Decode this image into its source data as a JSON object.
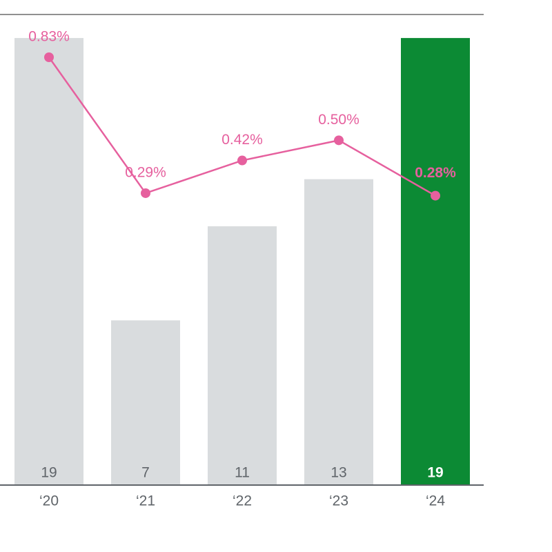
{
  "chart_data": {
    "type": "bar",
    "categories": [
      "‘20",
      "‘21",
      "‘22",
      "‘23",
      "‘24"
    ],
    "ylim": [
      0,
      20
    ],
    "y2lim": [
      -0.87,
      1.0
    ],
    "series": [
      {
        "type": "bar",
        "values": [
          19,
          7,
          11,
          13,
          19
        ],
        "colors": [
          "#d9dcde",
          "#d9dcde",
          "#d9dcde",
          "#d9dcde",
          "#0c8a34"
        ],
        "label_colors": [
          "#5f6469",
          "#5f6469",
          "#5f6469",
          "#5f6469",
          "#ffffff"
        ]
      },
      {
        "type": "line",
        "axis": "y2",
        "color": "#e6609e",
        "values": [
          0.83,
          0.29,
          0.42,
          0.5,
          0.28
        ],
        "value_labels": [
          "0.83%",
          "0.29%",
          "0.42%",
          "0.50%",
          "0.28%"
        ]
      }
    ]
  }
}
